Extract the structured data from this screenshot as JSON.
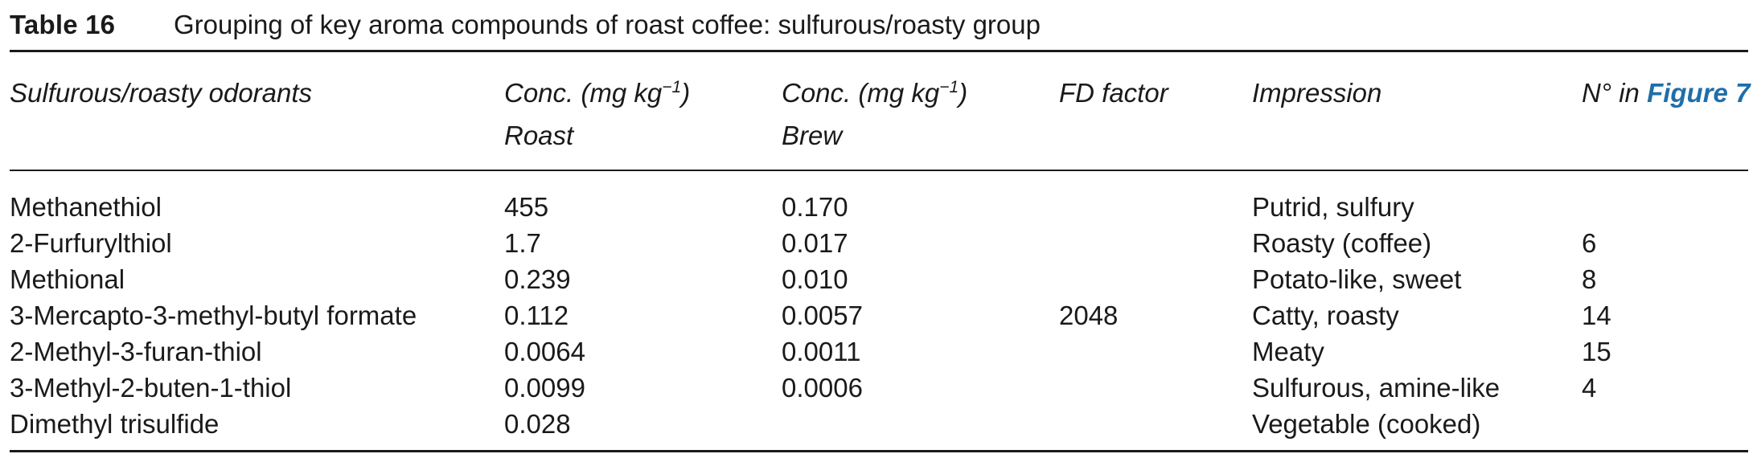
{
  "caption": {
    "label": "Table 16",
    "title": "Grouping of key aroma compounds of roast coffee: sulfurous/roasty group"
  },
  "header": {
    "odorants": "Sulfurous/roasty odorants",
    "conc_roast_line1_pre": "Conc. (mg kg",
    "conc_roast_line1_sup": "−1",
    "conc_roast_line1_post": ")",
    "conc_roast_line2": "Roast",
    "conc_brew_line1_pre": "Conc. (mg kg",
    "conc_brew_line1_sup": "−1",
    "conc_brew_line1_post": ")",
    "conc_brew_line2": "Brew",
    "fd_factor": "FD factor",
    "impression": "Impression",
    "figure_ref_pre": "N° in ",
    "figure_ref_link": "Figure 7"
  },
  "colors": {
    "text": "#1a1a1a",
    "figure_link": "#1f6fa8"
  },
  "rows": [
    {
      "odorant": "Methanethiol",
      "roast": "455",
      "brew": "0.170",
      "fd": "",
      "impression": "Putrid, sulfury",
      "fig_no": ""
    },
    {
      "odorant": "2-Furfurylthiol",
      "roast": "1.7",
      "brew": "0.017",
      "fd": "",
      "impression": "Roasty (coffee)",
      "fig_no": "6"
    },
    {
      "odorant": "Methional",
      "roast": "0.239",
      "brew": "0.010",
      "fd": "",
      "impression": "Potato-like, sweet",
      "fig_no": "8"
    },
    {
      "odorant": "3-Mercapto-3-methyl-butyl formate",
      "roast": "0.112",
      "brew": "0.0057",
      "fd": "2048",
      "impression": "Catty, roasty",
      "fig_no": "14"
    },
    {
      "odorant": "2-Methyl-3-furan-thiol",
      "roast": "0.0064",
      "brew": "0.0011",
      "fd": "",
      "impression": "Meaty",
      "fig_no": "15"
    },
    {
      "odorant": "3-Methyl-2-buten-1-thiol",
      "roast": "0.0099",
      "brew": "0.0006",
      "fd": "",
      "impression": "Sulfurous, amine-like",
      "fig_no": "4"
    },
    {
      "odorant": "Dimethyl trisulfide",
      "roast": "0.028",
      "brew": "",
      "fd": "",
      "impression": "Vegetable (cooked)",
      "fig_no": ""
    }
  ]
}
